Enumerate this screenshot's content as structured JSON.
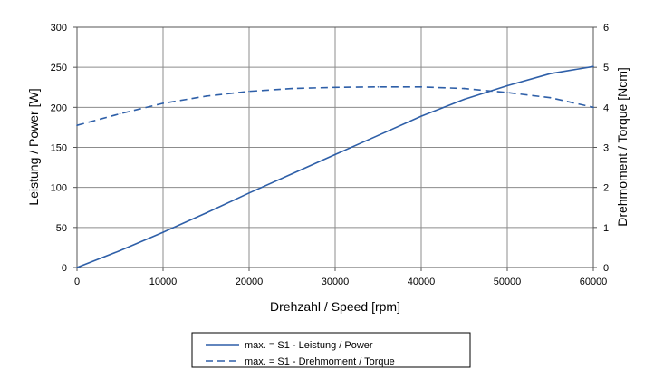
{
  "chart_data": {
    "type": "line",
    "title": "",
    "xlabel": "Drehzahl / Speed [rpm]",
    "ylabel_left": "Leistung / Power [W]",
    "ylabel_right": "Drehmoment / Torque [Ncm]",
    "xlim": [
      0,
      60000
    ],
    "ylim_left": [
      0,
      300
    ],
    "ylim_right": [
      0,
      6
    ],
    "x_ticks": [
      "0",
      "10000",
      "20000",
      "30000",
      "40000",
      "50000",
      "60000"
    ],
    "y_left_ticks": [
      "0",
      "50",
      "100",
      "150",
      "200",
      "250",
      "300"
    ],
    "y_right_ticks": [
      "0",
      "1",
      "2",
      "3",
      "4",
      "5",
      "6"
    ],
    "grid": true,
    "legend_position": "bottom",
    "line_color": "#2e5fa8",
    "series": [
      {
        "name": "max. = S1 - Leistung / Power",
        "axis": "left",
        "style": "solid",
        "x": [
          0,
          5000,
          10000,
          15000,
          20000,
          25000,
          30000,
          35000,
          40000,
          45000,
          50000,
          55000,
          60000
        ],
        "values": [
          0,
          21,
          44,
          68,
          93,
          117,
          141,
          165,
          189,
          210,
          227,
          242,
          251
        ]
      },
      {
        "name": "max. = S1 - Drehmoment / Torque",
        "axis": "right",
        "style": "dashed",
        "x": [
          0,
          5000,
          10000,
          15000,
          20000,
          25000,
          30000,
          35000,
          40000,
          45000,
          50000,
          55000,
          60000
        ],
        "values": [
          3.55,
          3.84,
          4.1,
          4.28,
          4.4,
          4.47,
          4.5,
          4.51,
          4.51,
          4.47,
          4.37,
          4.24,
          4.0
        ]
      }
    ]
  }
}
